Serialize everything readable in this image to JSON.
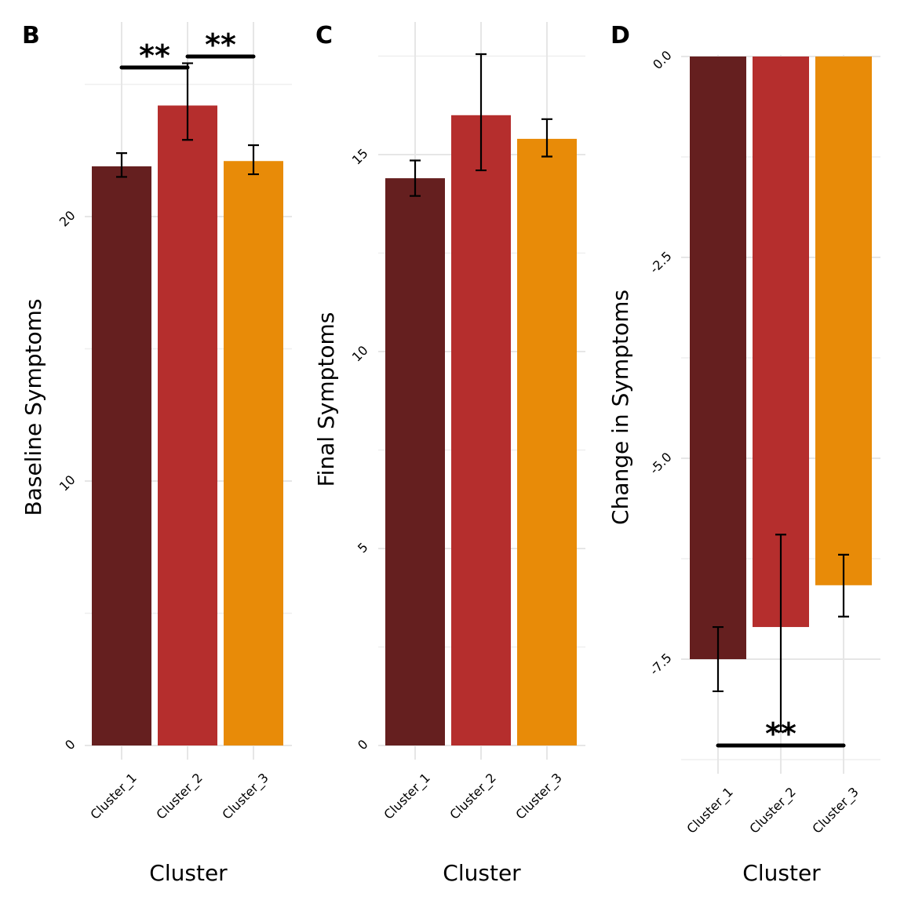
{
  "chart_data": [
    {
      "type": "bar",
      "panel": "B",
      "categories": [
        "Cluster_1",
        "Cluster_2",
        "Cluster_3"
      ],
      "values": [
        21.9,
        24.2,
        22.1
      ],
      "error_low": [
        21.5,
        22.9,
        21.6
      ],
      "error_high": [
        22.4,
        25.8,
        22.7
      ],
      "colors": [
        "#651f1f",
        "#b52e2d",
        "#e88b08"
      ],
      "xlabel": "Cluster",
      "ylabel": "Baseline Symptoms",
      "ylim": [
        0,
        26
      ],
      "yticks": [
        0,
        10,
        20
      ],
      "ytick_labels": [
        "0",
        "10",
        "20"
      ],
      "grid": true,
      "significance": [
        {
          "from": "Cluster_1",
          "to": "Cluster_2",
          "label": "**",
          "y": 25.8
        },
        {
          "from": "Cluster_2",
          "to": "Cluster_3",
          "label": "**",
          "y": 26.2
        }
      ]
    },
    {
      "type": "bar",
      "panel": "C",
      "categories": [
        "Cluster_1",
        "Cluster_2",
        "Cluster_3"
      ],
      "values": [
        14.4,
        16.0,
        15.4
      ],
      "error_low": [
        13.95,
        14.6,
        14.95
      ],
      "error_high": [
        14.85,
        17.55,
        15.9
      ],
      "colors": [
        "#651f1f",
        "#b52e2d",
        "#e88b08"
      ],
      "xlabel": "Cluster",
      "ylabel": "Final Symptoms",
      "ylim": [
        0,
        17.5
      ],
      "yticks": [
        0,
        5,
        10,
        15
      ],
      "ytick_labels": [
        "0",
        "5",
        "10",
        "15"
      ],
      "grid": true,
      "significance": []
    },
    {
      "type": "bar",
      "panel": "D",
      "categories": [
        "Cluster_1",
        "Cluster_2",
        "Cluster_3"
      ],
      "values": [
        -7.5,
        -7.1,
        -6.58
      ],
      "error_low": [
        -7.9,
        -8.4,
        -6.97
      ],
      "error_high": [
        -7.1,
        -5.95,
        -6.2
      ],
      "colors": [
        "#651f1f",
        "#b52e2d",
        "#e88b08"
      ],
      "xlabel": "Cluster",
      "ylabel": "Change in Symptoms",
      "ylim": [
        -8.75,
        0
      ],
      "yticks": [
        0,
        -2.5,
        -5,
        -7.5
      ],
      "ytick_labels": [
        "0.0",
        "-2.5",
        "-5.0",
        "-7.5"
      ],
      "grid": true,
      "significance": [
        {
          "from": "Cluster_1",
          "to": "Cluster_3",
          "label": "**",
          "y": -8.6
        }
      ]
    }
  ]
}
